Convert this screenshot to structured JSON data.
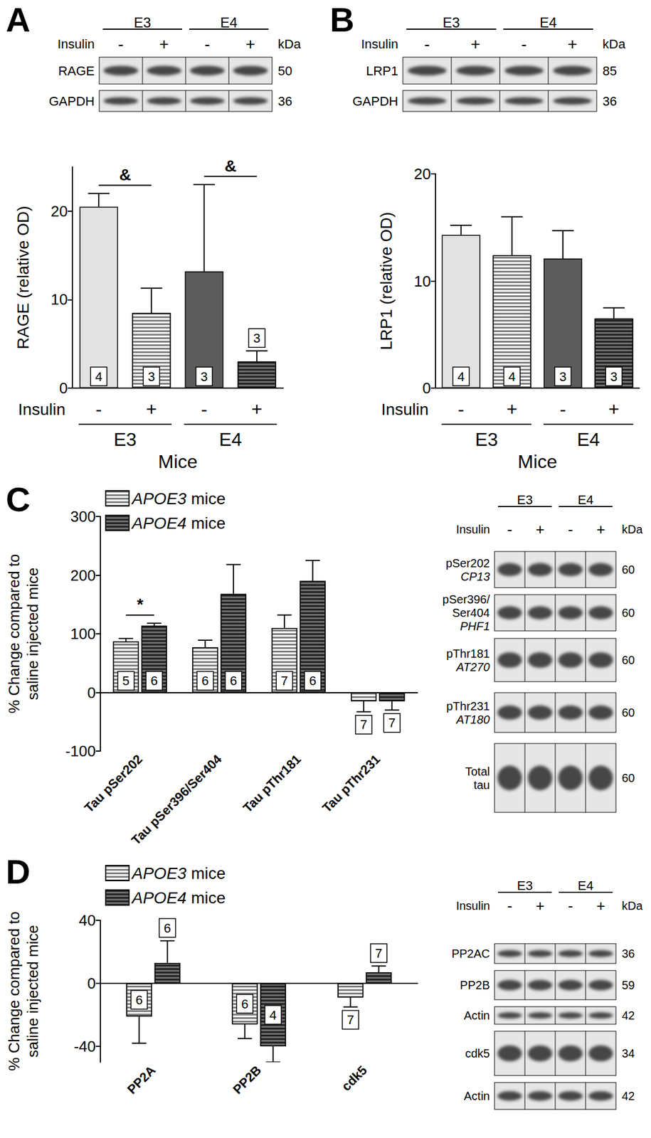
{
  "panels": [
    "A",
    "B",
    "C",
    "D"
  ],
  "blots": [
    {
      "groups": [
        "E3",
        "E4"
      ],
      "lane_title": "Insulin",
      "lanes": [
        "-",
        "+",
        "-",
        "+"
      ],
      "unit": "kDa",
      "rows": [
        {
          "label": "RAGE",
          "kda": 50
        },
        {
          "label": "GAPDH",
          "kda": 36
        }
      ]
    },
    {
      "groups": [
        "E3",
        "E4"
      ],
      "lane_title": "Insulin",
      "lanes": [
        "-",
        "+",
        "-",
        "+"
      ],
      "unit": "kDa",
      "rows": [
        {
          "label": "LRP1",
          "kda": 85
        },
        {
          "label": "GAPDH",
          "kda": 36
        }
      ]
    },
    {
      "groups": [
        "E3",
        "E4"
      ],
      "lane_title": "Insulin",
      "lanes": [
        "-",
        "+",
        "-",
        "+"
      ],
      "unit": "kDa",
      "rows": [
        {
          "label": "pSer202",
          "antibody": "CP13",
          "kda": 60
        },
        {
          "label": "pSer396/\nSer404",
          "antibody": "PHF1",
          "kda": 60
        },
        {
          "label": "pThr181",
          "antibody": "AT270",
          "kda": 60
        },
        {
          "label": "pThr231",
          "antibody": "AT180",
          "kda": 60
        },
        {
          "label": "Total\ntau",
          "kda": 60
        }
      ]
    },
    {
      "groups": [
        "E3",
        "E4"
      ],
      "lane_title": "Insulin",
      "lanes": [
        "-",
        "+",
        "-",
        "+"
      ],
      "unit": "kDa",
      "rows": [
        {
          "label": "PP2AC",
          "kda": 36
        },
        {
          "label": "PP2B",
          "kda": 59
        },
        {
          "label": "Actin",
          "kda": 42
        },
        {
          "label": "cdk5",
          "kda": 34
        },
        {
          "label": "Actin",
          "kda": 42
        }
      ]
    }
  ],
  "chart_data": [
    {
      "type": "bar",
      "categories": [
        "-",
        "+",
        "-",
        "+"
      ],
      "groups": [
        "E3",
        "E3",
        "E4",
        "E4"
      ],
      "category_title": "Insulin",
      "x_label": "Mice",
      "y_label": "RAGE (relative OD)",
      "values": [
        20.5,
        8.5,
        13.2,
        3.0
      ],
      "errors": [
        1.5,
        2.8,
        9.8,
        1.2
      ],
      "n": [
        4,
        3,
        3,
        3
      ],
      "colors": [
        "#e3e3e3",
        "#ffffff",
        "#5c5c5c",
        "#6e6e6e"
      ],
      "ylim": [
        0,
        25
      ],
      "yticks": [
        0,
        10,
        20
      ],
      "significance": [
        {
          "from": 0,
          "to": 1,
          "label": "&"
        },
        {
          "from": 2,
          "to": 3,
          "label": "&"
        }
      ]
    },
    {
      "type": "bar",
      "categories": [
        "-",
        "+",
        "-",
        "+"
      ],
      "groups": [
        "E3",
        "E3",
        "E4",
        "E4"
      ],
      "category_title": "Insulin",
      "x_label": "Mice",
      "y_label": "LRP1 (relative OD)",
      "values": [
        14.3,
        12.4,
        12.1,
        6.5
      ],
      "errors": [
        0.9,
        3.6,
        2.6,
        1.0
      ],
      "n": [
        4,
        4,
        3,
        3
      ],
      "colors": [
        "#e3e3e3",
        "#ffffff",
        "#5c5c5c",
        "#6e6e6e"
      ],
      "ylim": [
        0,
        20
      ],
      "yticks": [
        0,
        10,
        20
      ]
    },
    {
      "type": "bar",
      "categories": [
        "Tau pSer202",
        "Tau pSer396/Ser404",
        "Tau pThr181",
        "Tau pThr231"
      ],
      "y_label": "% Change compared to\nsaline injected mice",
      "series": [
        {
          "name": "APOE3 mice",
          "color": "#ffffff",
          "values": [
            87,
            77,
            110,
            -15
          ],
          "errors": [
            5,
            12,
            22,
            18
          ],
          "n": [
            5,
            6,
            7,
            7
          ]
        },
        {
          "name": "APOE4 mice",
          "color": "#6e6e6e",
          "values": [
            114,
            168,
            190,
            -15
          ],
          "errors": [
            4,
            50,
            35,
            15
          ],
          "n": [
            6,
            6,
            6,
            7
          ]
        }
      ],
      "ylim": [
        -100,
        300
      ],
      "yticks": [
        -100,
        0,
        100,
        200,
        300
      ],
      "legend": "upper left",
      "significance": [
        {
          "category": 0,
          "label": "*"
        }
      ]
    },
    {
      "type": "bar",
      "categories": [
        "PP2A",
        "PP2B",
        "cdk5"
      ],
      "y_label": "% Change compared to\nsaline injected mice",
      "series": [
        {
          "name": "APOE3 mice",
          "color": "#ffffff",
          "values": [
            -21,
            -26,
            -9
          ],
          "errors": [
            17,
            9,
            6
          ],
          "n": [
            6,
            6,
            7
          ]
        },
        {
          "name": "APOE4 mice",
          "color": "#6e6e6e",
          "values": [
            13,
            -40,
            7
          ],
          "errors": [
            14,
            10,
            4
          ],
          "n": [
            6,
            4,
            7
          ]
        }
      ],
      "ylim": [
        -50,
        40
      ],
      "yticks": [
        -40,
        0,
        40
      ],
      "legend": "upper left"
    }
  ]
}
